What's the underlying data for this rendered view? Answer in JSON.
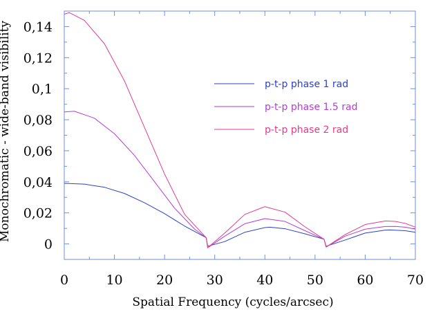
{
  "chart_data": {
    "type": "line",
    "title": "",
    "xlabel": "Spatial Frequency (cycles/arcsec)",
    "ylabel": "Monochromatic - wide-band visibility",
    "xlim": [
      0,
      70
    ],
    "ylim": [
      -0.01,
      0.15
    ],
    "x_ticks": [
      0,
      10,
      20,
      30,
      40,
      50,
      60,
      70
    ],
    "x_tick_labels": [
      "0",
      "10",
      "20",
      "30",
      "40",
      "50",
      "60",
      "70"
    ],
    "y_ticks": [
      0,
      0.02,
      0.04,
      0.06,
      0.08,
      0.1,
      0.12,
      0.14
    ],
    "y_tick_labels": [
      "0",
      "0,02",
      "0,04",
      "0,06",
      "0,08",
      "0,1",
      "0,12",
      "0,14"
    ],
    "grid": false,
    "legend_position": "center-right",
    "axis_color": "#6f8fd8",
    "series": [
      {
        "name": "p-t-p phase 1 rad",
        "color": "#2c3fc8",
        "x": [
          0,
          4,
          8,
          12,
          16,
          20,
          24,
          28.3,
          28.6,
          32,
          36,
          40,
          41,
          44,
          48,
          51.8,
          52.2,
          56,
          60,
          64,
          65,
          68,
          70
        ],
        "y": [
          0.039,
          0.0385,
          0.0365,
          0.0325,
          0.0265,
          0.0195,
          0.0115,
          0.004,
          -0.0015,
          0.0015,
          0.0075,
          0.0105,
          0.0108,
          0.0098,
          0.0065,
          0.003,
          -0.0015,
          0.0025,
          0.007,
          0.0089,
          0.009,
          0.0085,
          0.0075
        ]
      },
      {
        "name": "p-t-p phase 1.5 rad",
        "color": "#b13fd3",
        "x": [
          0,
          2,
          6,
          10,
          14,
          18,
          22,
          26,
          28.3,
          28.6,
          32,
          36,
          40,
          44,
          48,
          51.8,
          52.2,
          56,
          60,
          64,
          66,
          68,
          70
        ],
        "y": [
          0.085,
          0.0855,
          0.081,
          0.071,
          0.057,
          0.04,
          0.023,
          0.0095,
          0.004,
          -0.0025,
          0.005,
          0.013,
          0.0163,
          0.0145,
          0.0085,
          0.003,
          -0.002,
          0.005,
          0.0095,
          0.0112,
          0.0113,
          0.0108,
          0.0095
        ]
      },
      {
        "name": "p-t-p phase 2 rad",
        "color": "#e43a8c",
        "x": [
          0,
          1,
          4,
          8,
          12,
          16,
          20,
          24,
          28.3,
          28.6,
          32,
          36,
          40,
          44,
          48,
          51.8,
          52.2,
          56,
          60,
          64,
          66,
          68,
          70
        ],
        "y": [
          0.148,
          0.149,
          0.144,
          0.129,
          0.105,
          0.075,
          0.045,
          0.019,
          0.004,
          -0.0025,
          0.007,
          0.019,
          0.024,
          0.0205,
          0.011,
          0.003,
          -0.002,
          0.006,
          0.0125,
          0.0148,
          0.0145,
          0.0132,
          0.0108
        ]
      }
    ]
  }
}
